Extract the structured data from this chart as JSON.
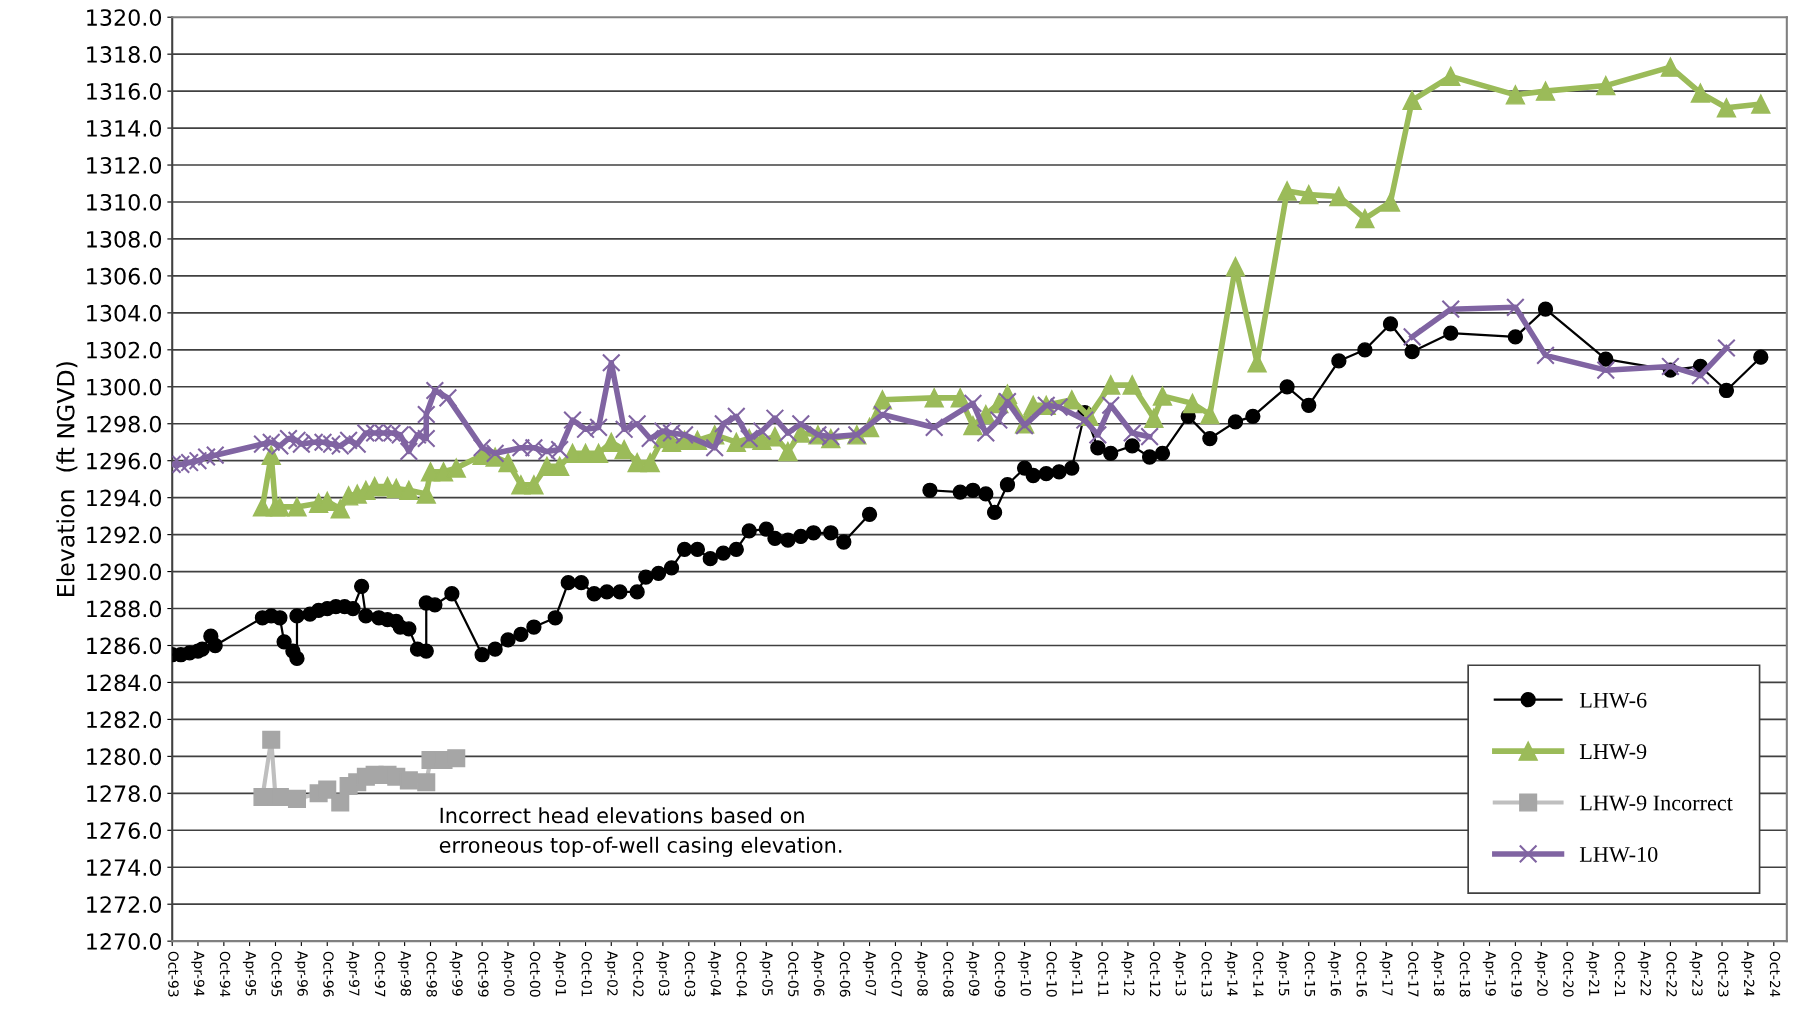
{
  "chart_data": {
    "type": "line",
    "ylabel": "Elevation  (ft NGVD)",
    "xlim": [
      "1993-10",
      "2025-01"
    ],
    "ylim": [
      1270,
      1320
    ],
    "yticks": [
      {
        "value": 1270,
        "label": "1270.0"
      },
      {
        "value": 1272,
        "label": "1272.0"
      },
      {
        "value": 1274,
        "label": "1274.0"
      },
      {
        "value": 1276,
        "label": "1276.0"
      },
      {
        "value": 1278,
        "label": "1278.0"
      },
      {
        "value": 1280,
        "label": "1280.0"
      },
      {
        "value": 1282,
        "label": "1282.0"
      },
      {
        "value": 1284,
        "label": "1284.0"
      },
      {
        "value": 1286,
        "label": "1286.0"
      },
      {
        "value": 1288,
        "label": "1288.0"
      },
      {
        "value": 1290,
        "label": "1290.0"
      },
      {
        "value": 1292,
        "label": "1292.0"
      },
      {
        "value": 1294,
        "label": "1294.0"
      },
      {
        "value": 1296,
        "label": "1296.0"
      },
      {
        "value": 1298,
        "label": "1298.0"
      },
      {
        "value": 1300,
        "label": "1300.0"
      },
      {
        "value": 1302,
        "label": "1302.0"
      },
      {
        "value": 1304,
        "label": "1304.0"
      },
      {
        "value": 1306,
        "label": "1306.0"
      },
      {
        "value": 1308,
        "label": "1308.0"
      },
      {
        "value": 1310,
        "label": "1310.0"
      },
      {
        "value": 1312,
        "label": "1312.0"
      },
      {
        "value": 1314,
        "label": "1314.0"
      },
      {
        "value": 1316,
        "label": "1316.0"
      },
      {
        "value": 1318,
        "label": "1318.0"
      },
      {
        "value": 1320,
        "label": "1320.0"
      }
    ],
    "xticks": [
      {
        "value": "1993-10",
        "label": "Oct-93"
      },
      {
        "value": "1994-04",
        "label": "Apr-94"
      },
      {
        "value": "1994-10",
        "label": "Oct-94"
      },
      {
        "value": "1995-04",
        "label": "Apr-95"
      },
      {
        "value": "1995-10",
        "label": "Oct-95"
      },
      {
        "value": "1996-04",
        "label": "Apr-96"
      },
      {
        "value": "1996-10",
        "label": "Oct-96"
      },
      {
        "value": "1997-04",
        "label": "Apr-97"
      },
      {
        "value": "1997-10",
        "label": "Oct-97"
      },
      {
        "value": "1998-04",
        "label": "Apr-98"
      },
      {
        "value": "1998-10",
        "label": "Oct-98"
      },
      {
        "value": "1999-04",
        "label": "Apr-99"
      },
      {
        "value": "1999-10",
        "label": "Oct-99"
      },
      {
        "value": "2000-04",
        "label": "Apr-00"
      },
      {
        "value": "2000-10",
        "label": "Oct-00"
      },
      {
        "value": "2001-04",
        "label": "Apr-01"
      },
      {
        "value": "2001-10",
        "label": "Oct-01"
      },
      {
        "value": "2002-04",
        "label": "Apr-02"
      },
      {
        "value": "2002-10",
        "label": "Oct-02"
      },
      {
        "value": "2003-04",
        "label": "Apr-03"
      },
      {
        "value": "2003-10",
        "label": "Oct-03"
      },
      {
        "value": "2004-04",
        "label": "Apr-04"
      },
      {
        "value": "2004-10",
        "label": "Oct-04"
      },
      {
        "value": "2005-04",
        "label": "Apr-05"
      },
      {
        "value": "2005-10",
        "label": "Oct-05"
      },
      {
        "value": "2006-04",
        "label": "Apr-06"
      },
      {
        "value": "2006-10",
        "label": "Oct-06"
      },
      {
        "value": "2007-04",
        "label": "Apr-07"
      },
      {
        "value": "2007-10",
        "label": "Oct-07"
      },
      {
        "value": "2008-04",
        "label": "Apr-08"
      },
      {
        "value": "2008-10",
        "label": "Oct-08"
      },
      {
        "value": "2009-04",
        "label": "Apr-09"
      },
      {
        "value": "2009-10",
        "label": "Oct-09"
      },
      {
        "value": "2010-04",
        "label": "Apr-10"
      },
      {
        "value": "2010-10",
        "label": "Oct-10"
      },
      {
        "value": "2011-04",
        "label": "Apr-11"
      },
      {
        "value": "2011-10",
        "label": "Oct-11"
      },
      {
        "value": "2012-04",
        "label": "Apr-12"
      },
      {
        "value": "2012-10",
        "label": "Oct-12"
      },
      {
        "value": "2013-04",
        "label": "Apr-13"
      },
      {
        "value": "2013-10",
        "label": "Oct-13"
      },
      {
        "value": "2014-04",
        "label": "Apr-14"
      },
      {
        "value": "2014-10",
        "label": "Oct-14"
      },
      {
        "value": "2015-04",
        "label": "Apr-15"
      },
      {
        "value": "2015-10",
        "label": "Oct-15"
      },
      {
        "value": "2016-04",
        "label": "Apr-16"
      },
      {
        "value": "2016-10",
        "label": "Oct-16"
      },
      {
        "value": "2017-04",
        "label": "Apr-17"
      },
      {
        "value": "2017-10",
        "label": "Oct-17"
      },
      {
        "value": "2018-04",
        "label": "Apr-18"
      },
      {
        "value": "2018-10",
        "label": "Oct-18"
      },
      {
        "value": "2019-04",
        "label": "Apr-19"
      },
      {
        "value": "2019-10",
        "label": "Oct-19"
      },
      {
        "value": "2020-04",
        "label": "Apr-20"
      },
      {
        "value": "2020-10",
        "label": "Oct-20"
      },
      {
        "value": "2021-04",
        "label": "Apr-21"
      },
      {
        "value": "2021-10",
        "label": "Oct-21"
      },
      {
        "value": "2022-04",
        "label": "Apr-22"
      },
      {
        "value": "2022-10",
        "label": "Oct-22"
      },
      {
        "value": "2023-04",
        "label": "Apr-23"
      },
      {
        "value": "2023-10",
        "label": "Oct-23"
      },
      {
        "value": "2024-04",
        "label": "Apr-24"
      },
      {
        "value": "2024-10",
        "label": "Oct-24"
      }
    ],
    "grid": "y",
    "legend": "bottom right",
    "annotations": [
      "Incorrect head elevations based on\nerroneous top-of-well casing elevation."
    ],
    "series": [
      {
        "name": "LHW-6",
        "color": "#000000",
        "marker": "circle",
        "x": [
          "1993-10",
          "1993-12",
          "1994-02",
          "1994-04",
          "1994-05",
          "1994-07",
          "1994-08",
          "1995-07",
          "1995-09",
          "1995-11",
          "1995-12",
          "1996-02",
          "1996-03",
          "1996-03",
          "1996-06",
          "1996-08",
          "1996-10",
          "1996-12",
          "1997-02",
          "1997-04",
          "1997-06",
          "1997-07",
          "1997-10",
          "1997-12",
          "1998-02",
          "1998-03",
          "1998-05",
          "1998-07",
          "1998-09",
          "1998-09",
          "1998-11",
          "1999-03",
          "1999-10",
          "2000-01",
          "2000-04",
          "2000-07",
          "2000-10",
          "2001-03",
          "2001-06",
          "2001-09",
          "2001-12",
          "2002-03",
          "2002-06",
          "2002-10",
          "2002-12",
          "2003-03",
          "2003-06",
          "2003-09",
          "2003-12",
          "2004-03",
          "2004-06",
          "2004-09",
          "2004-12",
          "2005-04",
          "2005-06",
          "2005-09",
          "2005-12",
          "2006-03",
          "2006-07",
          "2006-10",
          "2007-04",
          "2007-11",
          "2008-06",
          "2009-01",
          "2009-04",
          "2009-07",
          "2009-09",
          "2009-12",
          "2010-04",
          "2010-06",
          "2010-09",
          "2010-12",
          "2011-03",
          "2011-06",
          "2011-09",
          "2011-12",
          "2012-05",
          "2012-09",
          "2012-12",
          "2013-06",
          "2013-11",
          "2014-05",
          "2014-09",
          "2015-05",
          "2015-10",
          "2016-05",
          "2016-11",
          "2017-05",
          "2017-10",
          "2018-07",
          "2019-10",
          "2020-05",
          "2021-07",
          "2022-10",
          "2023-05",
          "2023-11",
          "2024-07"
        ],
        "values": [
          1285.5,
          1285.5,
          1285.6,
          1285.7,
          1285.8,
          1286.5,
          1286.0,
          1287.5,
          1287.6,
          1287.5,
          1286.2,
          1285.7,
          1285.3,
          1287.6,
          1287.7,
          1287.9,
          1288.0,
          1288.1,
          1288.1,
          1288.0,
          1289.2,
          1287.6,
          1287.5,
          1287.4,
          1287.3,
          1287.0,
          1286.9,
          1285.8,
          1285.7,
          1288.3,
          1288.2,
          1288.8,
          1285.5,
          1285.8,
          1286.3,
          1286.6,
          1287.0,
          1287.5,
          1289.4,
          1289.4,
          1288.8,
          1288.9,
          1288.9,
          1288.9,
          1289.7,
          1289.9,
          1290.2,
          1291.2,
          1291.2,
          1290.7,
          1291.0,
          1291.2,
          1292.2,
          1292.3,
          1291.8,
          1291.7,
          1291.9,
          1292.1,
          1292.1,
          1291.6,
          1293.1,
          null,
          1294.4,
          1294.3,
          1294.4,
          1294.2,
          1293.2,
          1294.7,
          1295.6,
          1295.2,
          1295.3,
          1295.4,
          1295.6,
          1298.6,
          1296.7,
          1296.4,
          1296.8,
          1296.2,
          1296.4,
          1298.4,
          1297.2,
          1298.1,
          1298.4,
          1300.0,
          1299.0,
          1301.4,
          1302.0,
          1303.4,
          1301.9,
          1302.9,
          1302.7,
          1304.2,
          1301.5,
          1300.9,
          1301.1,
          1299.8,
          1301.6
        ]
      },
      {
        "name": "LHW-9",
        "color": "#9bbb59",
        "marker": "triangle",
        "x": [
          "1995-07",
          "1995-09",
          "1995-10",
          "1995-11",
          "1996-03",
          "1996-08",
          "1996-10",
          "1997-01",
          "1997-03",
          "1997-05",
          "1997-07",
          "1997-09",
          "1997-12",
          "1998-02",
          "1998-05",
          "1998-09",
          "1998-10",
          "1999-01",
          "1999-04",
          "1999-10",
          "2000-01",
          "2000-04",
          "2000-07",
          "2000-10",
          "2001-01",
          "2001-04",
          "2001-07",
          "2001-10",
          "2002-01",
          "2002-04",
          "2002-07",
          "2002-10",
          "2003-01",
          "2003-04",
          "2003-06",
          "2003-09",
          "2003-12",
          "2004-04",
          "2004-09",
          "2004-12",
          "2005-03",
          "2005-06",
          "2005-09",
          "2005-12",
          "2006-04",
          "2006-07",
          "2007-01",
          "2007-04",
          "2007-07",
          "2008-07",
          "2009-01",
          "2009-04",
          "2009-07",
          "2009-10",
          "2009-12",
          "2010-04",
          "2010-06",
          "2010-09",
          "2011-03",
          "2011-07",
          "2011-12",
          "2012-05",
          "2012-10",
          "2012-12",
          "2013-07",
          "2013-11",
          "2014-05",
          "2014-10",
          "2015-05",
          "2015-10",
          "2016-05",
          "2016-11",
          "2017-05",
          "2017-10",
          "2018-07",
          "2019-10",
          "2020-05",
          "2021-07",
          "2022-10",
          "2023-05",
          "2023-11",
          "2024-07"
        ],
        "values": [
          1293.5,
          1296.3,
          1293.5,
          1293.5,
          1293.5,
          1293.7,
          1293.8,
          1293.4,
          1294.1,
          1294.2,
          1294.4,
          1294.6,
          1294.6,
          1294.5,
          1294.4,
          1294.2,
          1295.4,
          1295.4,
          1295.6,
          1296.3,
          1296.2,
          1295.9,
          1294.7,
          1294.7,
          1295.7,
          1295.7,
          1296.4,
          1296.4,
          1296.4,
          1297.0,
          1296.6,
          1295.9,
          1295.9,
          1297.2,
          1297.0,
          1297.1,
          1297.1,
          1297.4,
          1297.0,
          1297.2,
          1297.1,
          1297.3,
          1296.5,
          1297.5,
          1297.4,
          1297.2,
          1297.4,
          1297.8,
          1299.3,
          1299.4,
          1299.4,
          1297.9,
          1298.5,
          1299.1,
          1299.6,
          1298.0,
          1299.0,
          1299.0,
          1299.3,
          1298.4,
          1300.1,
          1300.1,
          1298.3,
          1299.5,
          1299.1,
          1298.5,
          1306.5,
          1301.3,
          1310.6,
          1310.4,
          1310.3,
          1309.1,
          1310.0,
          1315.5,
          1316.8,
          1315.8,
          1316.0,
          1316.3,
          1317.3,
          1315.9,
          1315.1,
          1315.3
        ]
      },
      {
        "name": "LHW-9 Incorrect",
        "color": "#a6a6a6",
        "marker": "square",
        "x": [
          "1995-07",
          "1995-09",
          "1995-10",
          "1995-11",
          "1996-03",
          "1996-08",
          "1996-10",
          "1997-01",
          "1997-03",
          "1997-05",
          "1997-07",
          "1997-09",
          "1997-12",
          "1998-02",
          "1998-05",
          "1998-09",
          "1998-10",
          "1999-01",
          "1999-04"
        ],
        "values": [
          1277.8,
          1280.9,
          1277.8,
          1277.8,
          1277.7,
          1278.0,
          1278.2,
          1277.5,
          1278.4,
          1278.6,
          1278.9,
          1279.0,
          1279.0,
          1278.9,
          1278.7,
          1278.6,
          1279.8,
          1279.8,
          1279.9
        ]
      },
      {
        "name": "LHW-10",
        "color": "#8064a2",
        "marker": "cross",
        "x": [
          "1993-10",
          "1993-12",
          "1994-02",
          "1994-04",
          "1994-06",
          "1994-08",
          "1995-07",
          "1995-09",
          "1995-11",
          "1996-01",
          "1996-03",
          "1996-04",
          "1996-07",
          "1996-09",
          "1996-11",
          "1997-01",
          "1997-03",
          "1997-05",
          "1997-07",
          "1997-09",
          "1997-11",
          "1998-01",
          "1998-03",
          "1998-05",
          "1998-07",
          "1998-09",
          "1998-09",
          "1998-11",
          "1999-02",
          "1999-10",
          "2000-01",
          "2000-07",
          "2000-10",
          "2001-01",
          "2001-04",
          "2001-07",
          "2001-10",
          "2002-01",
          "2002-04",
          "2002-07",
          "2002-10",
          "2003-01",
          "2003-04",
          "2003-06",
          "2003-09",
          "2004-04",
          "2004-06",
          "2004-09",
          "2004-12",
          "2005-03",
          "2005-06",
          "2005-09",
          "2005-12",
          "2006-04",
          "2006-07",
          "2007-01",
          "2007-07",
          "2008-07",
          "2009-04",
          "2009-07",
          "2009-10",
          "2009-12",
          "2010-04",
          "2010-09",
          "2010-12",
          "2011-06",
          "2011-09",
          "2011-12",
          "2012-05",
          "2012-09",
          "2015-01",
          "2017-10",
          "2018-07",
          "2019-10",
          "2020-05",
          "2021-07",
          "2022-10",
          "2023-05",
          "2023-11"
        ],
        "values": [
          1295.8,
          1295.8,
          1295.9,
          1296.0,
          1296.2,
          1296.3,
          1296.9,
          1297.0,
          1296.8,
          1297.2,
          1297.1,
          1296.9,
          1297.0,
          1297.0,
          1296.9,
          1296.8,
          1297.1,
          1296.9,
          1297.5,
          1297.5,
          1297.5,
          1297.5,
          1297.4,
          1296.5,
          1297.4,
          1297.2,
          1298.5,
          1299.8,
          1299.4,
          1296.7,
          1296.4,
          1296.7,
          1296.7,
          1296.5,
          1296.6,
          1298.2,
          1297.7,
          1297.8,
          1301.3,
          1297.7,
          1298.0,
          1297.2,
          1297.6,
          1297.5,
          1297.4,
          1296.7,
          1298.0,
          1298.4,
          1297.2,
          1297.6,
          1298.3,
          1297.5,
          1298.0,
          1297.4,
          1297.3,
          1297.4,
          1298.5,
          1297.8,
          1299.1,
          1297.5,
          1298.2,
          1299.2,
          1297.9,
          1299.0,
          1298.9,
          1298.2,
          1297.4,
          1299.0,
          1297.5,
          1297.3,
          null,
          1302.7,
          1304.2,
          1304.3,
          1301.7,
          1300.9,
          1301.1,
          1300.6,
          1302.1
        ]
      }
    ]
  }
}
